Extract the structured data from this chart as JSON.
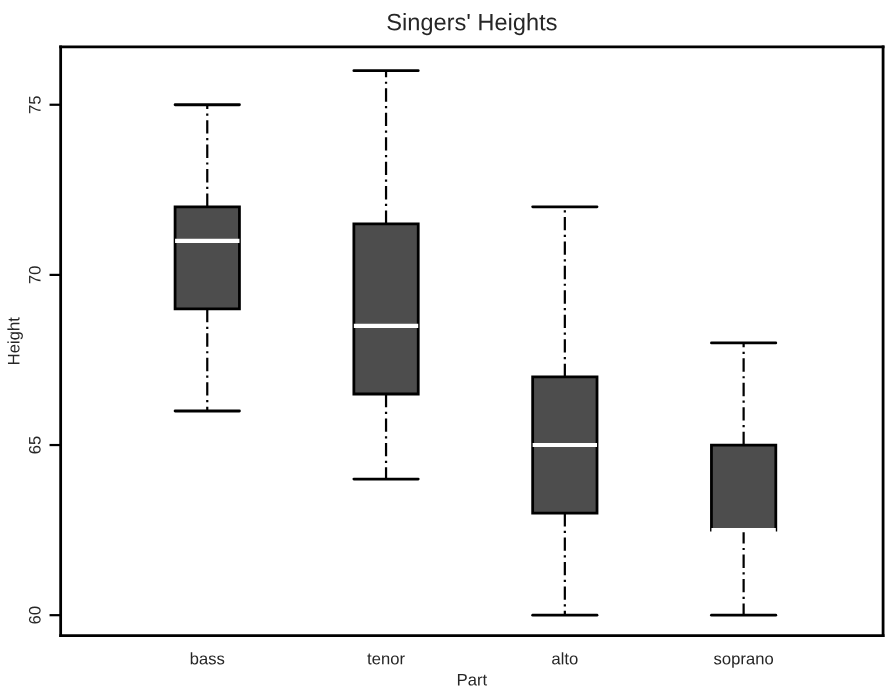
{
  "chart_data": {
    "type": "box",
    "title": "Singers' Heights",
    "xlabel": "Part",
    "ylabel": "Height",
    "categories": [
      "bass",
      "tenor",
      "alto",
      "soprano"
    ],
    "color": "#4d4d4d",
    "boxes": [
      {
        "low": 66,
        "q1": 69,
        "median": 71,
        "q3": 72,
        "high": 75
      },
      {
        "low": 64,
        "q1": 66.5,
        "median": 68.5,
        "q3": 71.5,
        "high": 76
      },
      {
        "low": 60,
        "q1": 63,
        "median": 65,
        "q3": 67,
        "high": 72
      },
      {
        "low": 60,
        "q1": 62.5,
        "median": 62.5,
        "q3": 65,
        "high": 68
      }
    ],
    "ylim": [
      59.4,
      76.7
    ],
    "yticks": [
      60,
      65,
      70,
      75
    ],
    "grid": false
  }
}
